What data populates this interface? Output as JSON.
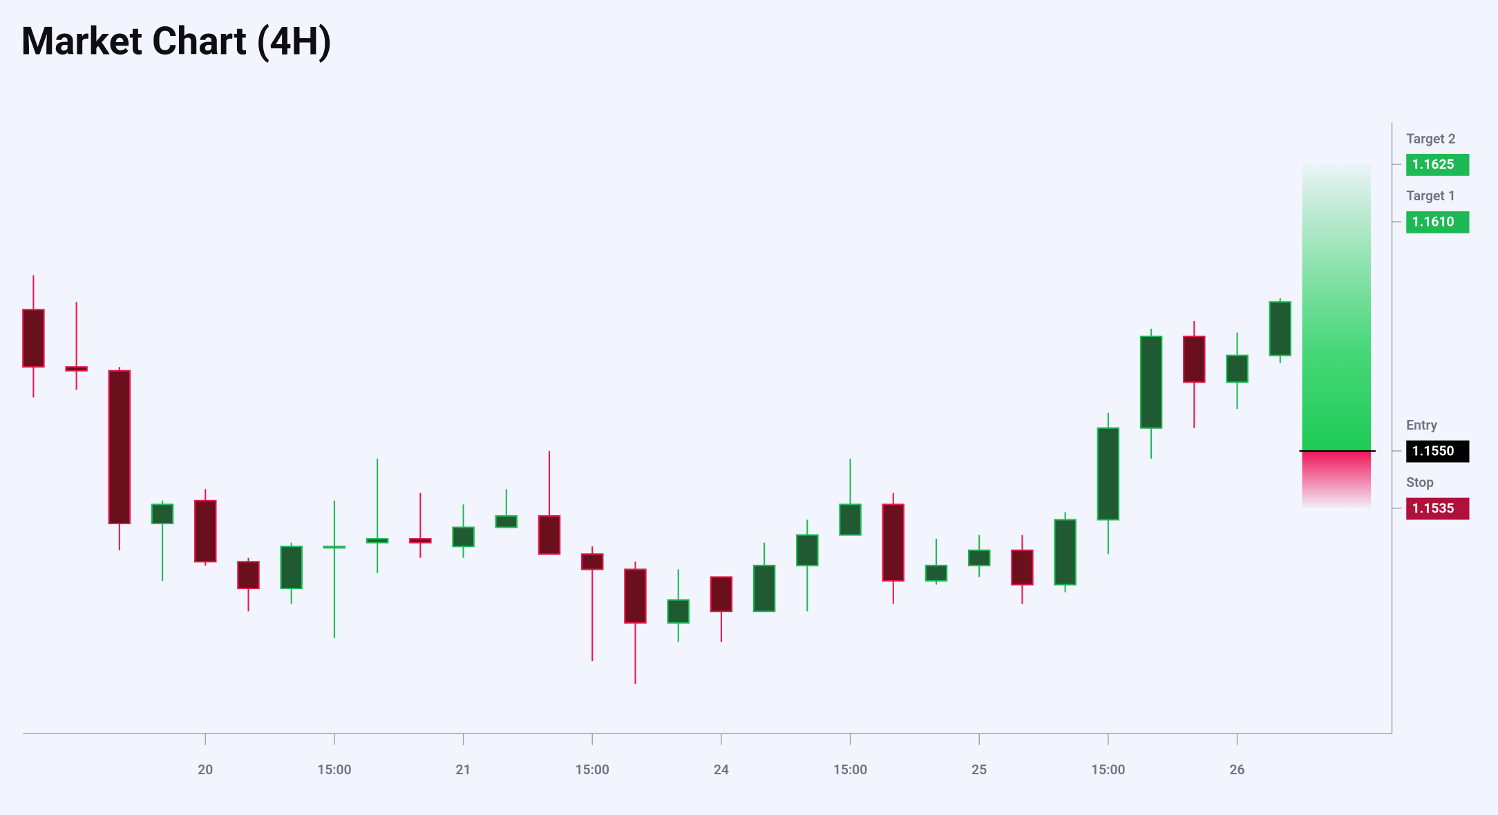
{
  "chart_data": {
    "type": "candlestick",
    "title": "Market Chart (4H)",
    "categories": [
      null,
      null,
      null,
      null,
      "20",
      null,
      null,
      "15:00",
      null,
      null,
      "21",
      null,
      null,
      "15:00",
      null,
      null,
      "24",
      null,
      null,
      "15:00",
      null,
      null,
      "25",
      null,
      null,
      "15:00",
      null,
      null,
      "26",
      null
    ],
    "open": [
      1.1587,
      1.1572,
      1.1571,
      1.1531,
      1.1537,
      1.1521,
      1.1514,
      1.1525,
      1.1526,
      1.1527,
      1.1525,
      1.153,
      1.1533,
      1.1523,
      1.1519,
      1.1505,
      1.1517,
      1.1508,
      1.152,
      1.1528,
      1.1536,
      1.1516,
      1.152,
      1.1524,
      1.1515,
      1.1532,
      1.1556,
      1.158,
      1.1568,
      1.1575
    ],
    "high": [
      1.1596,
      1.1589,
      1.1572,
      1.1537,
      1.154,
      1.1522,
      1.1526,
      1.1537,
      1.1548,
      1.1539,
      1.1536,
      1.154,
      1.155,
      1.1525,
      1.1521,
      1.1519,
      1.1517,
      1.1526,
      1.1532,
      1.1548,
      1.1539,
      1.1527,
      1.1528,
      1.1528,
      1.1534,
      1.156,
      1.1582,
      1.1584,
      1.1581,
      1.159
    ],
    "low": [
      1.1564,
      1.1566,
      1.1524,
      1.1516,
      1.152,
      1.1508,
      1.151,
      1.1501,
      1.1518,
      1.1522,
      1.1522,
      1.153,
      1.1523,
      1.1495,
      1.1489,
      1.15,
      1.15,
      1.1508,
      1.1508,
      1.1528,
      1.151,
      1.1515,
      1.1517,
      1.151,
      1.1513,
      1.1523,
      1.1548,
      1.1556,
      1.1561,
      1.1573
    ],
    "close": [
      1.1572,
      1.1571,
      1.1531,
      1.1536,
      1.1521,
      1.1514,
      1.1525,
      1.1525,
      1.1527,
      1.1526,
      1.153,
      1.1533,
      1.1523,
      1.1519,
      1.1505,
      1.1511,
      1.1508,
      1.152,
      1.1528,
      1.1536,
      1.1516,
      1.152,
      1.1524,
      1.1515,
      1.1532,
      1.1556,
      1.158,
      1.1568,
      1.1575,
      1.1589
    ],
    "up_color": "#1db954",
    "up_body_color": "#1f5a32",
    "down_color": "#e8174f",
    "down_body_color": "#6a0f1c",
    "ylim": [
      1.1476,
      1.1636
    ],
    "levels": [
      {
        "name": "Target 2",
        "value": 1.1625,
        "color": "#1db954"
      },
      {
        "name": "Target 1",
        "value": 1.161,
        "value_label": "1.1610",
        "color": "#1db954"
      },
      {
        "name": "Entry",
        "value": 1.155,
        "value_label": "1.1550",
        "color": "#000000"
      },
      {
        "name": "Stop",
        "value": 1.1535,
        "color": "#b0103a"
      }
    ]
  }
}
